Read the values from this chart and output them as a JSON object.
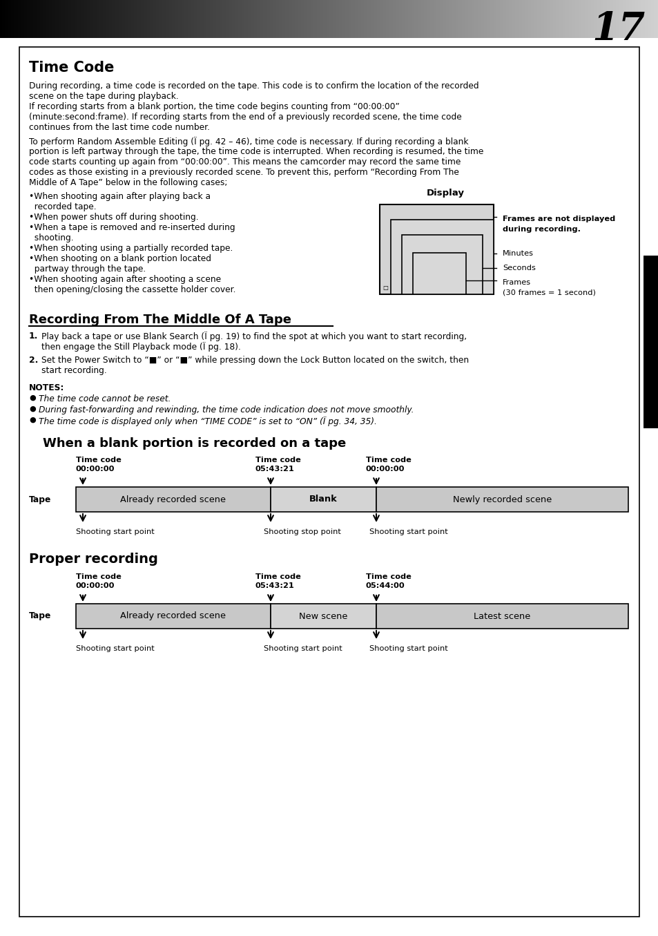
{
  "page_number": "17",
  "bg_color": "#ffffff",
  "main_title": "Time Code",
  "para1_line1": "During recording, a time code is recorded on the tape. This code is to confirm the location of the recorded",
  "para1_line2": "scene on the tape during playback.",
  "para1_line3": "If recording starts from a blank portion, the time code begins counting from “00:00:00”",
  "para1_line4": "(minute:second:frame). If recording starts from the end of a previously recorded scene, the time code",
  "para1_line5": "continues from the last time code number.",
  "para2_line1": "To perform Random Assemble Editing (Ï pg. 42 – 46), time code is necessary. If during recording a blank",
  "para2_line2": "portion is left partway through the tape, the time code is interrupted. When recording is resumed, the time",
  "para2_line3": "code starts counting up again from “00:00:00”. This means the camcorder may record the same time",
  "para2_line4": "codes as those existing in a previously recorded scene. To prevent this, perform “Recording From The",
  "para2_line5": "Middle of A Tape” below in the following cases;",
  "bullets": [
    "•When shooting again after playing back a",
    "  recorded tape.",
    "•When power shuts off during shooting.",
    "•When a tape is removed and re-inserted during",
    "  shooting.",
    "•When shooting using a partially recorded tape.",
    "•When shooting on a blank portion located",
    "  partway through the tape.",
    "•When shooting again after shooting a scene",
    "  then opening/closing the cassette holder cover."
  ],
  "display_label": "Display",
  "display_note_line1": "Frames are not displayed",
  "display_note_line2": "during recording.",
  "display_minutes": "Minutes",
  "display_seconds": "Seconds",
  "display_frames_line1": "Frames",
  "display_frames_line2": "(30 frames = 1 second)",
  "section2_title": "Recording From The Middle Of A Tape",
  "step1_num": "1.",
  "step1_line1": "Play back a tape or use Blank Search (Ï pg. 19) to find the spot at which you want to start recording,",
  "step1_line2": "then engage the Still Playback mode (Ï pg. 18).",
  "step2_num": "2.",
  "step2_line1": "Set the Power Switch to “■” or “■” while pressing down the Lock Button located on the switch, then",
  "step2_line2": "start recording.",
  "notes_title": "NOTES:",
  "note1": "The time code cannot be reset.",
  "note2": "During fast-forwarding and rewinding, the time code indication does not move smoothly.",
  "note3": "The time code is displayed only when “TIME CODE” is set to “ON” (Ï pg. 34, 35).",
  "diagram1_title": "When a blank portion is recorded on a tape",
  "d1_tc1": "Time code",
  "d1_tc1b": "00:00:00",
  "d1_tc2": "Time code",
  "d1_tc2b": "05:43:21",
  "d1_tc3": "Time code",
  "d1_tc3b": "00:00:00",
  "d1_tape_label": "Tape",
  "d1_seg1": "Already recorded scene",
  "d1_seg2": "Blank",
  "d1_seg3": "Newly recorded scene",
  "d1_bot1": "Shooting start point",
  "d1_bot2": "Shooting stop point",
  "d1_bot3": "Shooting start point",
  "diagram2_title": "Proper recording",
  "d2_tc1": "Time code",
  "d2_tc1b": "00:00:00",
  "d2_tc2": "Time code",
  "d2_tc2b": "05:43:21",
  "d2_tc3": "Time code",
  "d2_tc3b": "05:44:00",
  "d2_tape_label": "Tape",
  "d2_seg1": "Already recorded scene",
  "d2_seg2": "New scene",
  "d2_seg3": "Latest scene",
  "d2_bot1": "Shooting start point",
  "d2_bot2": "Shooting start point",
  "d2_bot3": "Shooting start point",
  "seg_gray": "#c8c8c8",
  "seg_light": "#d4d4d4"
}
